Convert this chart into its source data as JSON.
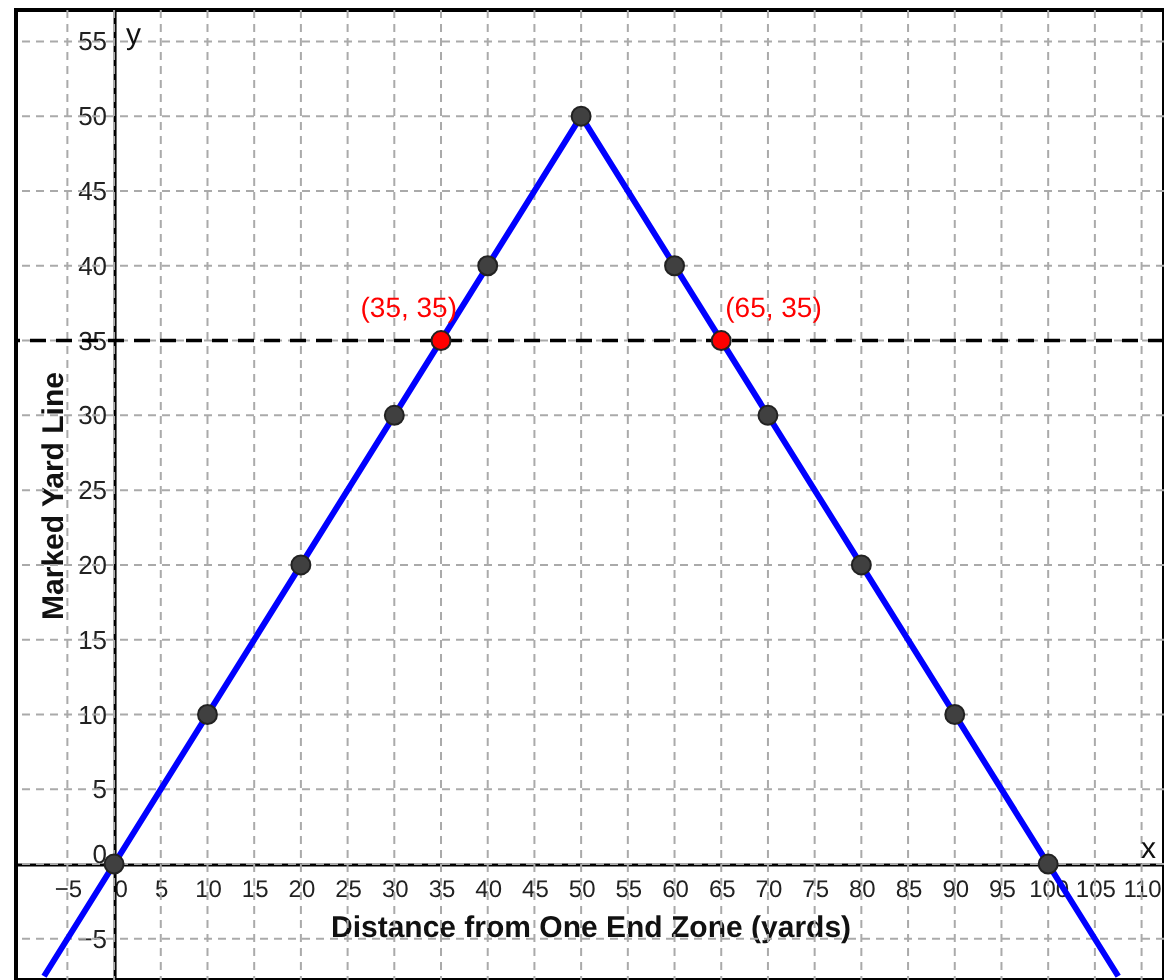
{
  "chart_data": {
    "type": "line",
    "xlabel": "Distance from One End Zone (yards)",
    "ylabel": "Marked Yard Line",
    "xlim": [
      -10.5,
      112.4
    ],
    "ylim": [
      -7.75,
      57.1
    ],
    "xticks": [
      -5,
      0,
      5,
      10,
      15,
      20,
      25,
      30,
      35,
      40,
      45,
      50,
      55,
      60,
      65,
      70,
      75,
      80,
      85,
      90,
      95,
      100,
      105,
      110
    ],
    "yticks": [
      -5,
      0,
      5,
      10,
      15,
      20,
      25,
      30,
      35,
      40,
      45,
      50,
      55
    ],
    "grid": true,
    "series": [
      {
        "color": "#0000ff",
        "marker": "none",
        "x": [
          -7.5,
          50,
          107.5
        ],
        "values": [
          -7.5,
          50,
          -7.5
        ]
      },
      {
        "type": "scatter",
        "color": "#404040",
        "marker": "circle",
        "x": [
          0,
          10,
          20,
          30,
          40,
          50,
          60,
          70,
          80,
          90,
          100
        ],
        "values": [
          0,
          10,
          20,
          30,
          40,
          50,
          40,
          30,
          20,
          10,
          0
        ]
      },
      {
        "type": "scatter",
        "color": "#ff0000",
        "marker": "circle",
        "x": [
          35,
          65
        ],
        "values": [
          35,
          35
        ]
      }
    ],
    "ref_lines": [
      {
        "axis": "y",
        "value": 35,
        "color": "#000000",
        "line_style": "dashed"
      }
    ],
    "annotations": [
      {
        "text": "(35, 35)",
        "x": 35,
        "y": 35
      },
      {
        "text": "(65, 35)",
        "x": 65,
        "y": 35
      },
      "x",
      "y"
    ]
  }
}
